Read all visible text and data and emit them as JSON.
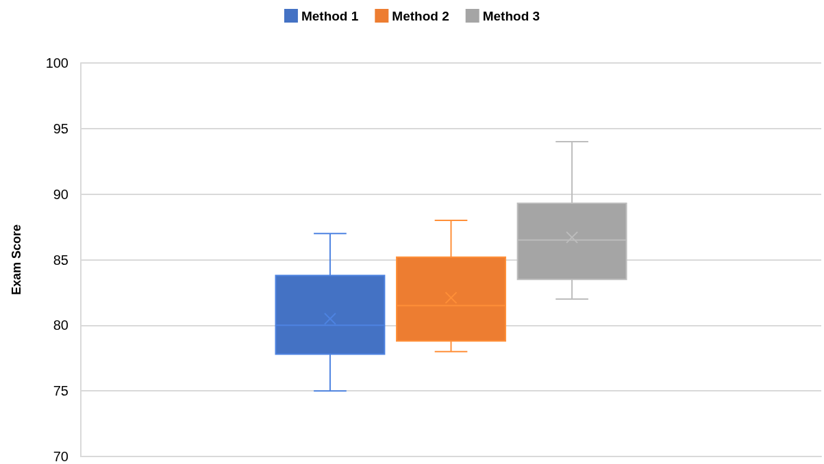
{
  "chart_data": {
    "type": "box",
    "ylabel": "Exam Score",
    "categories": [
      null
    ],
    "ylim": [
      70,
      100
    ],
    "yticks": [
      70,
      75,
      80,
      85,
      90,
      95,
      100
    ],
    "grid": "y",
    "legend": "top",
    "series": [
      {
        "name": "Method 1",
        "color": "#4472c4",
        "boxes": [
          {
            "low": 75,
            "q1": 77.8,
            "median": 80,
            "q3": 83.8,
            "high": 87,
            "mean": 80.5
          }
        ]
      },
      {
        "name": "Method 2",
        "color": "#ed7d31",
        "boxes": [
          {
            "low": 78,
            "q1": 78.8,
            "median": 81.5,
            "q3": 85.2,
            "high": 88,
            "mean": 82.1
          }
        ]
      },
      {
        "name": "Method 3",
        "color": "#a5a5a5",
        "boxes": [
          {
            "low": 82,
            "q1": 83.5,
            "median": 86.5,
            "q3": 89.3,
            "high": 94,
            "mean": 86.7
          }
        ]
      }
    ]
  }
}
